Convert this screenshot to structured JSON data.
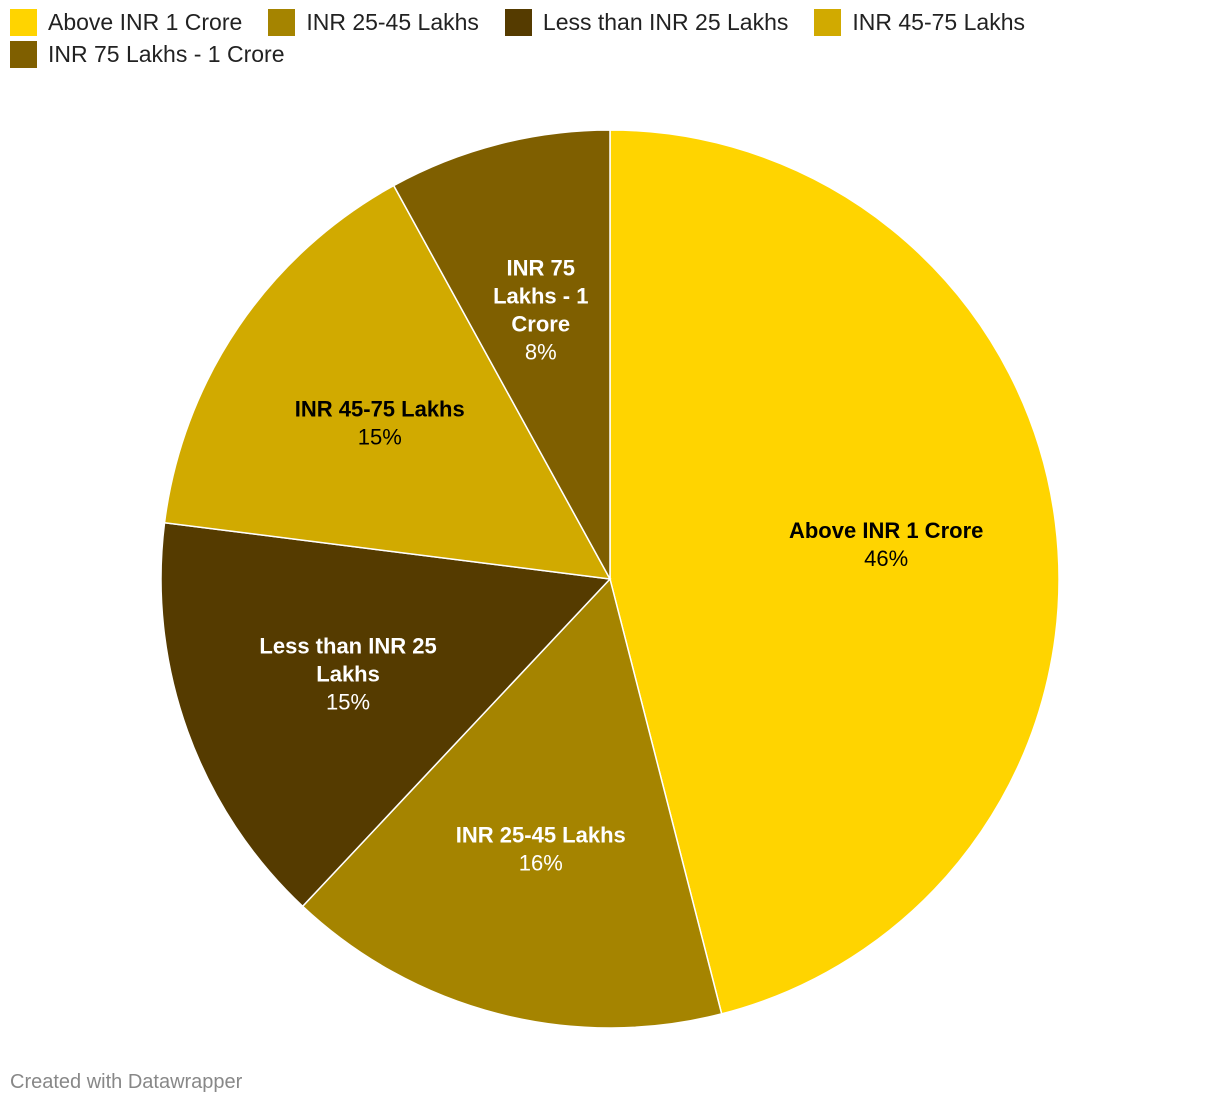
{
  "chart_data": {
    "type": "pie",
    "legend_position": "top-left",
    "slices": [
      {
        "label": "Above INR 1 Crore",
        "value": 46,
        "value_label": "46%",
        "color": "#ffd400",
        "label_color": "#000000",
        "label_lines": [
          "Above INR 1 Crore"
        ]
      },
      {
        "label": "INR 25-45 Lakhs",
        "value": 16,
        "value_label": "16%",
        "color": "#a58400",
        "label_color": "#ffffff",
        "label_lines": [
          "INR 25-45 Lakhs"
        ]
      },
      {
        "label": "Less than INR 25 Lakhs",
        "value": 15,
        "value_label": "15%",
        "color": "#553b00",
        "label_color": "#ffffff",
        "label_lines": [
          "Less than INR 25",
          "Lakhs"
        ]
      },
      {
        "label": "INR 45-75 Lakhs",
        "value": 15,
        "value_label": "15%",
        "color": "#d1aa00",
        "label_color": "#000000",
        "label_lines": [
          "INR 45-75 Lakhs"
        ]
      },
      {
        "label": "INR 75 Lakhs - 1 Crore",
        "value": 8,
        "value_label": "8%",
        "color": "#7f5f00",
        "label_color": "#ffffff",
        "label_lines": [
          "INR 75",
          "Lakhs - 1",
          "Crore"
        ]
      }
    ]
  },
  "footer": {
    "credit": "Created with Datawrapper"
  }
}
